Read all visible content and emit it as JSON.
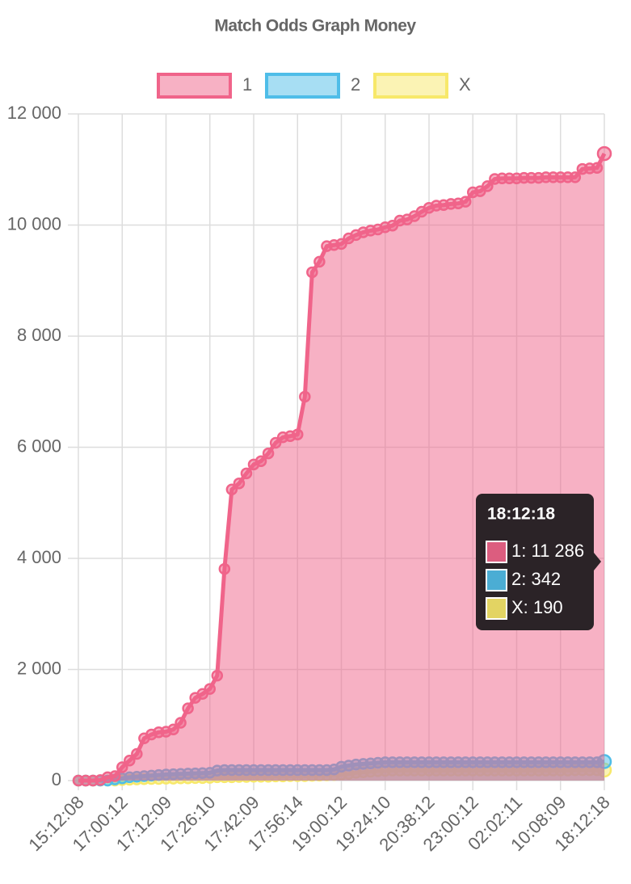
{
  "chart_data": {
    "type": "area",
    "title": "Match Odds Graph Money",
    "categories": [
      "15:12:08",
      null,
      null,
      null,
      null,
      null,
      "17:00:12",
      null,
      null,
      null,
      null,
      null,
      "17:12:09",
      null,
      null,
      null,
      null,
      null,
      "17:26:10",
      null,
      null,
      null,
      null,
      null,
      "17:42:09",
      null,
      null,
      null,
      null,
      null,
      "17:56:14",
      null,
      null,
      null,
      null,
      null,
      "19:00:12",
      null,
      null,
      null,
      null,
      null,
      "19:24:10",
      null,
      null,
      null,
      null,
      null,
      "20:38:12",
      null,
      null,
      null,
      null,
      null,
      "23:00:12",
      null,
      null,
      null,
      null,
      null,
      "02:02:11",
      null,
      null,
      null,
      null,
      null,
      "10:08:09",
      null,
      null,
      null,
      null,
      null,
      "18:12:18"
    ],
    "series": [
      {
        "name": "1",
        "color": "#f0648a",
        "values": [
          0,
          0,
          0,
          10,
          60,
          80,
          240,
          360,
          480,
          760,
          830,
          870,
          880,
          920,
          1040,
          1300,
          1490,
          1560,
          1650,
          1890,
          3810,
          5240,
          5350,
          5530,
          5690,
          5750,
          5890,
          6080,
          6180,
          6200,
          6230,
          6910,
          9150,
          9340,
          9620,
          9640,
          9660,
          9760,
          9820,
          9870,
          9900,
          9920,
          9960,
          9990,
          10080,
          10100,
          10160,
          10240,
          10310,
          10350,
          10360,
          10380,
          10390,
          10420,
          10590,
          10610,
          10700,
          10830,
          10840,
          10840,
          10840,
          10850,
          10850,
          10850,
          10860,
          10860,
          10860,
          10860,
          10860,
          11010,
          11020,
          11030,
          11286
        ]
      },
      {
        "name": "2",
        "color": "#4fbde8",
        "values": [
          0,
          0,
          0,
          0,
          0,
          20,
          40,
          60,
          70,
          80,
          90,
          100,
          110,
          115,
          120,
          125,
          130,
          135,
          140,
          180,
          190,
          190,
          190,
          190,
          190,
          190,
          190,
          190,
          190,
          190,
          190,
          190,
          190,
          190,
          190,
          200,
          250,
          270,
          290,
          300,
          310,
          320,
          330,
          330,
          330,
          330,
          330,
          330,
          330,
          330,
          330,
          330,
          330,
          330,
          330,
          330,
          330,
          330,
          330,
          330,
          330,
          330,
          330,
          330,
          330,
          330,
          330,
          330,
          330,
          330,
          330,
          330,
          342
        ]
      },
      {
        "name": "X",
        "color": "#f7e86a",
        "values": [
          0,
          0,
          0,
          0,
          0,
          0,
          10,
          15,
          20,
          25,
          30,
          30,
          35,
          35,
          40,
          40,
          45,
          45,
          50,
          60,
          60,
          60,
          65,
          65,
          70,
          70,
          70,
          75,
          75,
          80,
          80,
          80,
          85,
          90,
          95,
          100,
          110,
          120,
          140,
          150,
          160,
          170,
          175,
          180,
          180,
          180,
          180,
          180,
          180,
          180,
          180,
          180,
          180,
          180,
          180,
          180,
          180,
          180,
          180,
          180,
          180,
          180,
          180,
          180,
          180,
          180,
          180,
          180,
          185,
          185,
          185,
          185,
          190
        ]
      }
    ],
    "ylim": [
      0,
      12000
    ],
    "yticks": [
      0,
      {
        "value": 2000,
        "label": "2 000"
      },
      {
        "value": 4000,
        "label": "4 000"
      },
      {
        "value": 6000,
        "label": "6 000"
      },
      {
        "value": 8000,
        "label": "8 000"
      },
      {
        "value": 10000,
        "label": "10 000"
      },
      {
        "value": 12000,
        "label": "12 000"
      }
    ],
    "grid": true,
    "tooltip": {
      "title": "18:12:18",
      "items": [
        "1: 11 286",
        "2: 342",
        "X: 190"
      ]
    }
  }
}
